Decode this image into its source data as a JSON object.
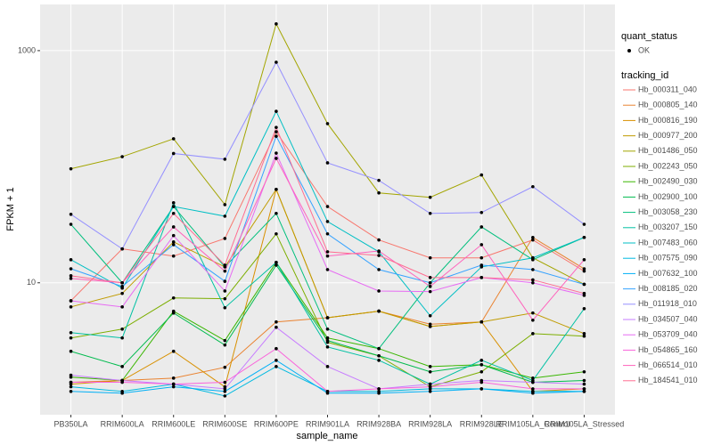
{
  "chart_data": {
    "type": "line",
    "x_label": "sample_name",
    "y_label": "FPKM + 1",
    "log_y": true,
    "grid": true,
    "status_title": "quant_status",
    "status_label": "OK",
    "legend_title": "tracking_id",
    "categories": [
      "PB350LA",
      "RRIM600LA",
      "RRIM600LE",
      "RRIM600SE",
      "RRIM600PE",
      "RRIM901LA",
      "RRIM928BA",
      "RRIM928LA",
      "RRIM928LE",
      "RRIM105LA_Control",
      "RRIM105LA_Stressed"
    ],
    "ylim": [
      0.73,
      2500
    ],
    "yticks": [
      10,
      1000
    ],
    "series": [
      {
        "name": "Hb_000311_040",
        "color": "#F8766D",
        "values": [
          7.0,
          19.6,
          17.0,
          24.1,
          200,
          45.4,
          23.4,
          16.4,
          16.4,
          23.4,
          12.6
        ]
      },
      {
        "name": "Hb_000805_140",
        "color": "#EA8331",
        "values": [
          1.39,
          1.44,
          1.51,
          1.87,
          4.6,
          5.0,
          5.7,
          4.4,
          4.6,
          24.6,
          13.2
        ]
      },
      {
        "name": "Hb_000816_190",
        "color": "#D89000",
        "values": [
          1.34,
          1.44,
          2.57,
          1.27,
          63.8,
          5.0,
          5.7,
          4.2,
          4.6,
          1.16,
          1.22
        ]
      },
      {
        "name": "Hb_000977_200",
        "color": "#C09B00",
        "values": [
          6.2,
          8.1,
          22.5,
          13.7,
          63.8,
          5.0,
          5.7,
          4.2,
          4.6,
          5.5,
          3.65
        ]
      },
      {
        "name": "Hb_001486_050",
        "color": "#A3A500",
        "values": [
          96,
          122,
          174,
          47.1,
          1700,
          235,
          59.5,
          54.5,
          84.9,
          16.4,
          9.7
        ]
      },
      {
        "name": "Hb_002243_050",
        "color": "#7CAE00",
        "values": [
          3.35,
          3.99,
          7.4,
          7.29,
          26.4,
          3.07,
          2.35,
          1.27,
          1.71,
          3.65,
          3.47
        ]
      },
      {
        "name": "Hb_002490_030",
        "color": "#39B600",
        "values": [
          1.54,
          1.44,
          5.69,
          3.18,
          15.0,
          3.35,
          2.71,
          1.9,
          1.97,
          1.51,
          1.71
        ]
      },
      {
        "name": "Hb_002900_100",
        "color": "#00BB4E",
        "values": [
          2.57,
          1.9,
          5.49,
          2.91,
          14.2,
          3.18,
          2.35,
          1.71,
          1.97,
          1.39,
          1.44
        ]
      },
      {
        "name": "Hb_003058_230",
        "color": "#00BF7D",
        "values": [
          31.9,
          10.0,
          45.4,
          13.7,
          39.6,
          3.99,
          2.71,
          10.0,
          30.3,
          15.8,
          24.6
        ]
      },
      {
        "name": "Hb_003207_150",
        "color": "#00C1A3",
        "values": [
          3.72,
          3.35,
          48.9,
          6.1,
          15.0,
          2.8,
          2.15,
          1.34,
          2.15,
          1.44,
          5.99
        ]
      },
      {
        "name": "Hb_007483_060",
        "color": "#00BFC4",
        "values": [
          15.8,
          9.0,
          45.4,
          37.5,
          300,
          33.7,
          18.5,
          5.2,
          13.7,
          16.4,
          24.6
        ]
      },
      {
        "name": "Hb_007575_090",
        "color": "#00BAE0",
        "values": [
          1.27,
          1.16,
          1.34,
          1.06,
          1.9,
          1.16,
          1.16,
          1.22,
          1.22,
          1.16,
          1.16
        ]
      },
      {
        "name": "Hb_007632_100",
        "color": "#00B0F6",
        "values": [
          1.16,
          1.12,
          1.27,
          1.16,
          2.15,
          1.12,
          1.12,
          1.16,
          1.22,
          1.12,
          1.16
        ]
      },
      {
        "name": "Hb_008185_020",
        "color": "#35A2FF",
        "values": [
          13.2,
          9.3,
          21.3,
          10.3,
          183,
          26.4,
          13.0,
          10.0,
          14.2,
          13.0,
          9.7
        ]
      },
      {
        "name": "Hb_011918_010",
        "color": "#9590FF",
        "values": [
          38.9,
          19.6,
          130,
          116,
          794,
          108,
          76.3,
          39.6,
          40.3,
          67.3,
          31.9
        ]
      },
      {
        "name": "Hb_034507_040",
        "color": "#C77CFF",
        "values": [
          1.6,
          1.44,
          1.34,
          1.22,
          4.14,
          1.9,
          1.22,
          1.34,
          1.44,
          1.39,
          1.34
        ]
      },
      {
        "name": "Hb_053709_040",
        "color": "#E76BF3",
        "values": [
          7.0,
          6.2,
          25.5,
          8.5,
          131,
          13.0,
          8.5,
          8.4,
          11.1,
          10.0,
          7.8
        ]
      },
      {
        "name": "Hb_054865_160",
        "color": "#FA62DB",
        "values": [
          1.39,
          1.39,
          1.34,
          1.39,
          2.71,
          1.16,
          1.22,
          1.27,
          1.39,
          1.22,
          1.22
        ]
      },
      {
        "name": "Hb_066514_010",
        "color": "#FF62BC",
        "values": [
          10.9,
          10.0,
          30.3,
          12.6,
          118,
          17.0,
          18.8,
          9.3,
          21.3,
          4.76,
          15.8
        ]
      },
      {
        "name": "Hb_184541_010",
        "color": "#FF6C91",
        "values": [
          11.5,
          10.0,
          39.6,
          14.2,
          218,
          18.5,
          17.2,
          11.1,
          11.1,
          10.6,
          8.1
        ]
      }
    ]
  }
}
